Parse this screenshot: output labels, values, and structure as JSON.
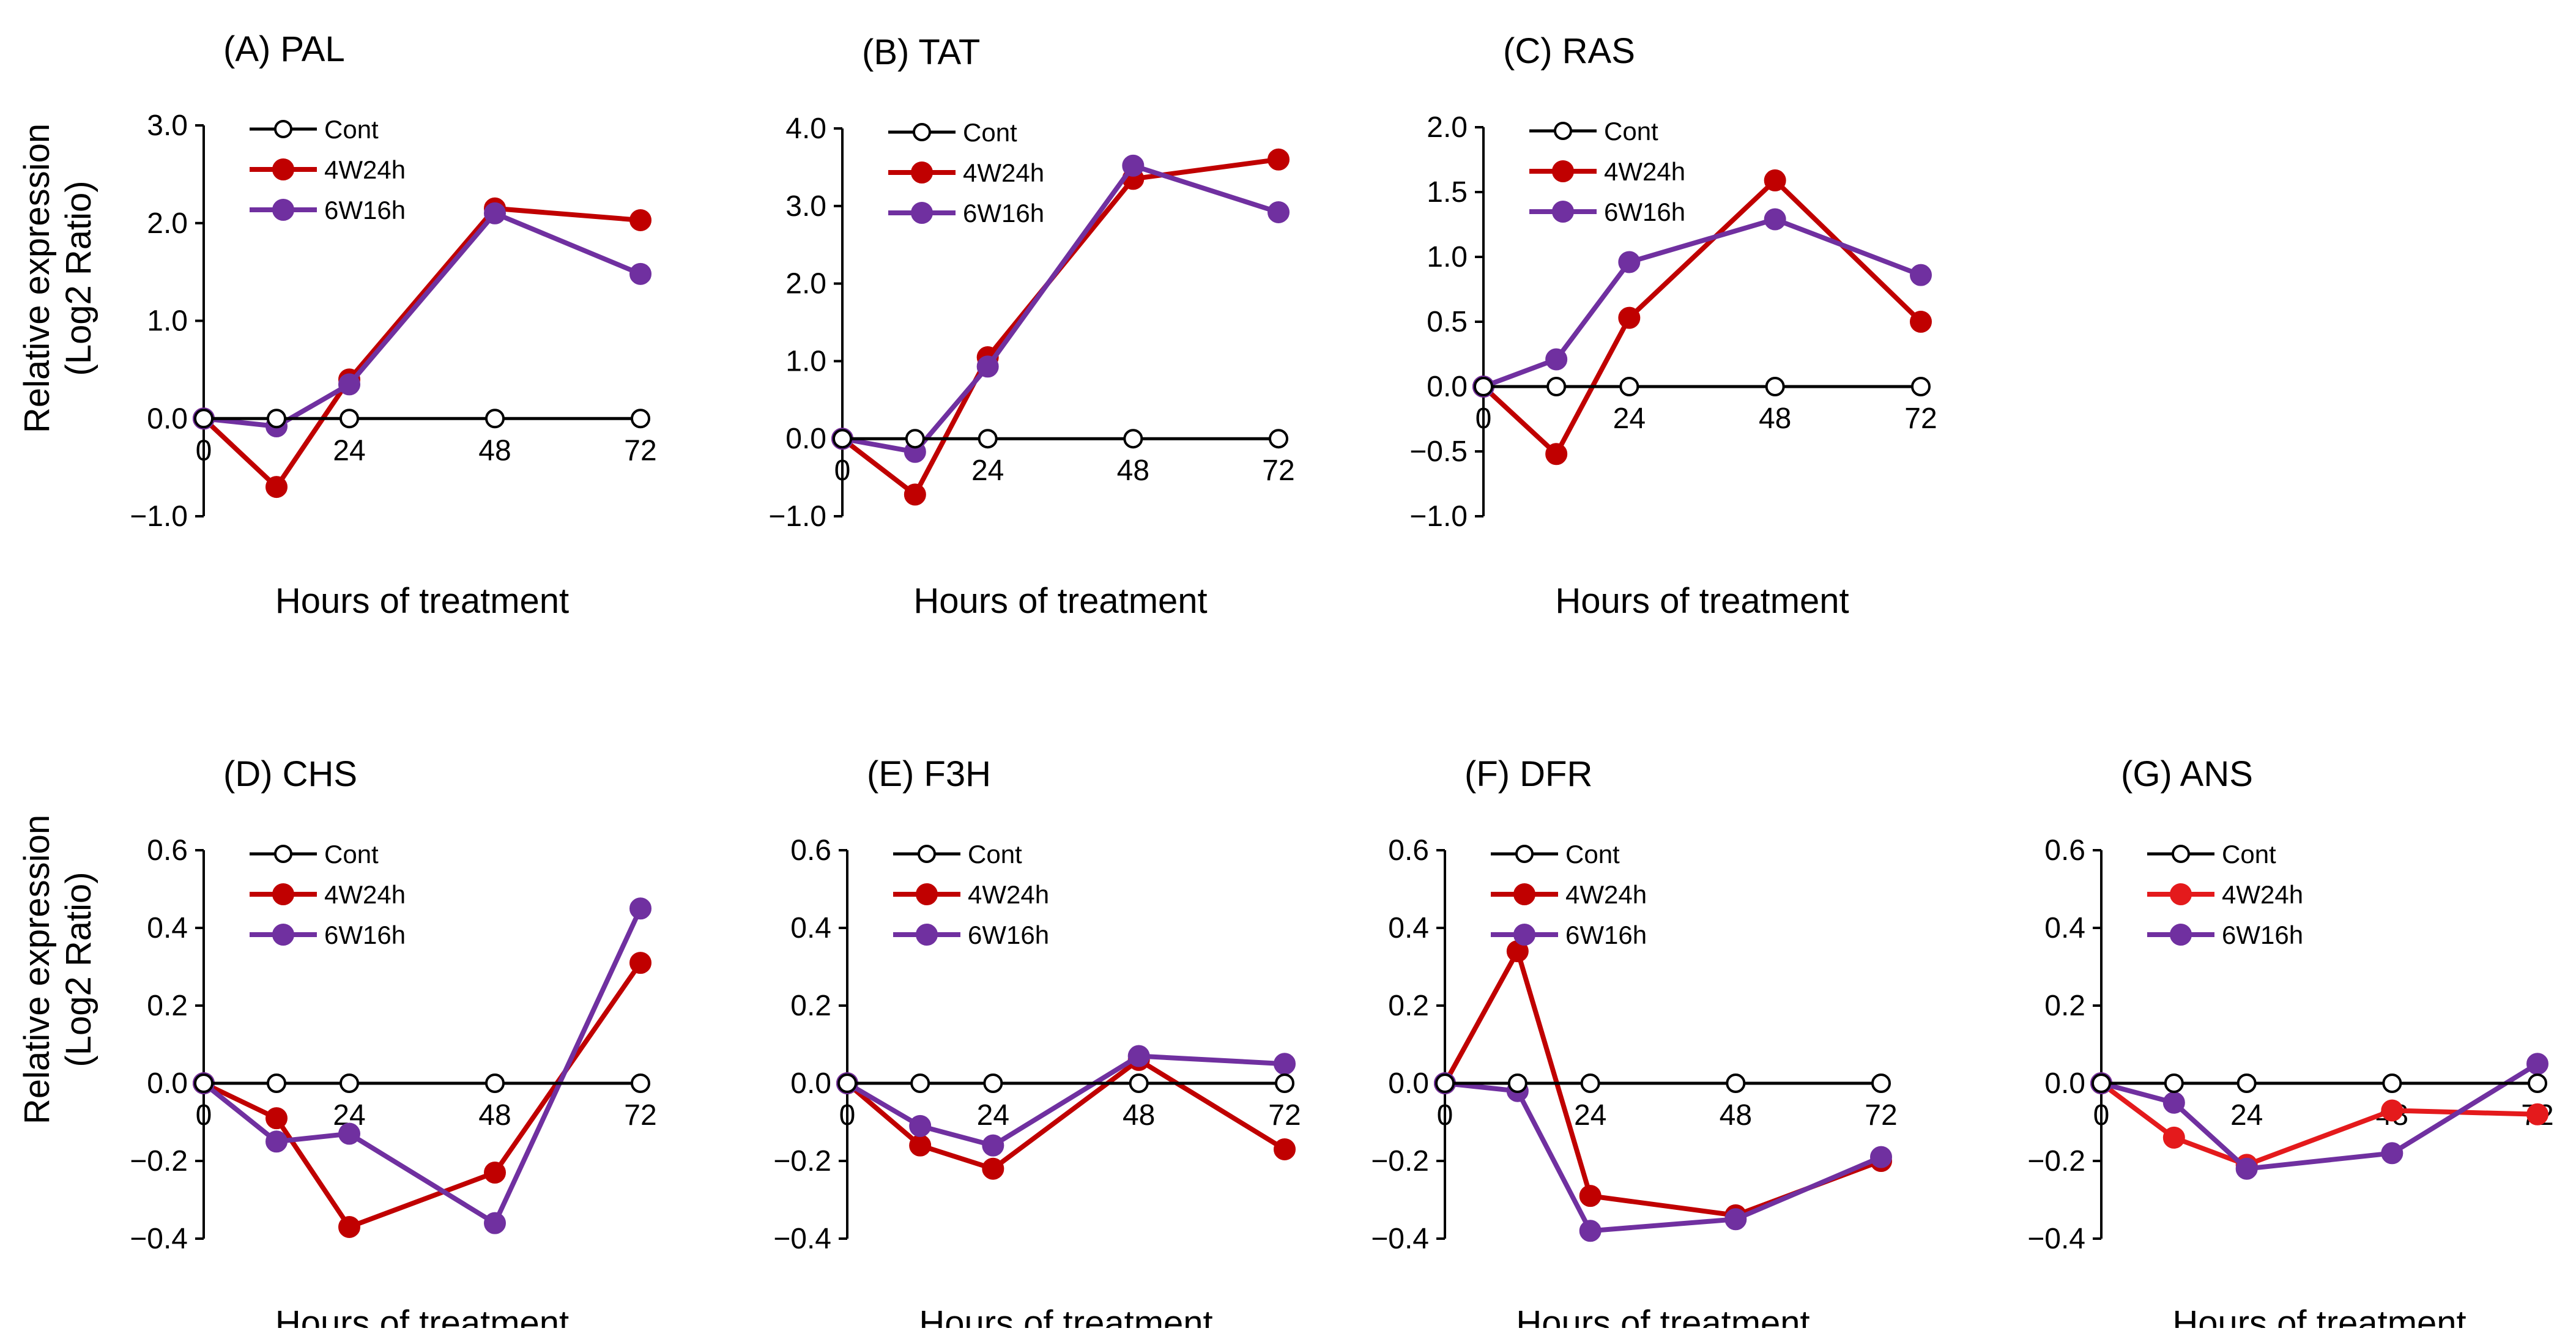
{
  "figure": {
    "ylabel_line1": "Relative expression",
    "ylabel_line2": "(Log2 Ratio)",
    "xlabel": "Hours of treatment"
  },
  "chart_data": [
    {
      "type": "line",
      "title": "(A) PAL",
      "xlabel": "Hours of treatment",
      "ylabel": "Relative expression (Log2 Ratio)",
      "x": [
        0,
        12,
        24,
        48,
        72
      ],
      "xticks": [
        "0",
        "24",
        "48",
        "72"
      ],
      "ylim": [
        -1.0,
        3.0
      ],
      "yticks": [
        "-1.0",
        "0.0",
        "1.0",
        "2.0",
        "3.0"
      ],
      "series": [
        {
          "name": "Cont",
          "color": "#000000",
          "marker": "open",
          "values": [
            0,
            0,
            0,
            0,
            0
          ]
        },
        {
          "name": "4W24h",
          "color": "#C00000",
          "marker": "filled",
          "values": [
            0,
            -0.7,
            0.4,
            2.15,
            2.03
          ]
        },
        {
          "name": "6W16h",
          "color": "#7030A0",
          "marker": "filled",
          "values": [
            0,
            -0.08,
            0.35,
            2.1,
            1.48
          ]
        }
      ]
    },
    {
      "type": "line",
      "title": "(B) TAT",
      "xlabel": "Hours of treatment",
      "ylabel": "Relative expression (Log2 Ratio)",
      "x": [
        0,
        12,
        24,
        48,
        72
      ],
      "xticks": [
        "0",
        "24",
        "48",
        "72"
      ],
      "ylim": [
        -1.0,
        4.0
      ],
      "yticks": [
        "-1.0",
        "0.0",
        "1.0",
        "2.0",
        "3.0",
        "4.0"
      ],
      "series": [
        {
          "name": "Cont",
          "color": "#000000",
          "marker": "open",
          "values": [
            0,
            0,
            0,
            0,
            0
          ]
        },
        {
          "name": "4W24h",
          "color": "#C00000",
          "marker": "filled",
          "values": [
            0,
            -0.72,
            1.05,
            3.35,
            3.6
          ]
        },
        {
          "name": "6W16h",
          "color": "#7030A0",
          "marker": "filled",
          "values": [
            0,
            -0.17,
            0.93,
            3.52,
            2.92
          ]
        }
      ]
    },
    {
      "type": "line",
      "title": "(C) RAS",
      "xlabel": "Hours of treatment",
      "ylabel": "Relative expression (Log2 Ratio)",
      "x": [
        0,
        12,
        24,
        48,
        72
      ],
      "xticks": [
        "0",
        "24",
        "48",
        "72"
      ],
      "ylim": [
        -1.0,
        2.0
      ],
      "yticks": [
        "-1.0",
        "-0.5",
        "0.0",
        "0.5",
        "1.0",
        "1.5",
        "2.0"
      ],
      "series": [
        {
          "name": "Cont",
          "color": "#000000",
          "marker": "open",
          "values": [
            0,
            0,
            0,
            0,
            0
          ]
        },
        {
          "name": "4W24h",
          "color": "#C00000",
          "marker": "filled",
          "values": [
            0,
            -0.52,
            0.53,
            1.59,
            0.5
          ]
        },
        {
          "name": "6W16h",
          "color": "#7030A0",
          "marker": "filled",
          "values": [
            0,
            0.21,
            0.96,
            1.29,
            0.86
          ]
        }
      ]
    },
    {
      "type": "line",
      "title": "(D) CHS",
      "xlabel": "Hours of treatment",
      "ylabel": "Relative expression (Log2 Ratio)",
      "x": [
        0,
        12,
        24,
        48,
        72
      ],
      "xticks": [
        "0",
        "24",
        "48",
        "72"
      ],
      "ylim": [
        -0.4,
        0.6
      ],
      "yticks": [
        "-0.4",
        "-0.2",
        "0.0",
        "0.2",
        "0.4",
        "0.6"
      ],
      "series": [
        {
          "name": "Cont",
          "color": "#000000",
          "marker": "open",
          "values": [
            0,
            0,
            0,
            0,
            0
          ]
        },
        {
          "name": "4W24h",
          "color": "#C00000",
          "marker": "filled",
          "values": [
            0,
            -0.09,
            -0.37,
            -0.23,
            0.31
          ]
        },
        {
          "name": "6W16h",
          "color": "#7030A0",
          "marker": "filled",
          "values": [
            0,
            -0.15,
            -0.13,
            -0.36,
            0.45
          ]
        }
      ]
    },
    {
      "type": "line",
      "title": "(E) F3H",
      "xlabel": "Hours of treatment",
      "ylabel": "Relative expression (Log2 Ratio)",
      "x": [
        0,
        12,
        24,
        48,
        72
      ],
      "xticks": [
        "0",
        "24",
        "48",
        "72"
      ],
      "ylim": [
        -0.4,
        0.6
      ],
      "yticks": [
        "-0.4",
        "-0.2",
        "0.0",
        "0.2",
        "0.4",
        "0.6"
      ],
      "series": [
        {
          "name": "Cont",
          "color": "#000000",
          "marker": "open",
          "values": [
            0,
            0,
            0,
            0,
            0
          ]
        },
        {
          "name": "4W24h",
          "color": "#C00000",
          "marker": "filled",
          "values": [
            0,
            -0.16,
            -0.22,
            0.06,
            -0.17
          ]
        },
        {
          "name": "6W16h",
          "color": "#7030A0",
          "marker": "filled",
          "values": [
            0,
            -0.11,
            -0.16,
            0.07,
            0.05
          ]
        }
      ]
    },
    {
      "type": "line",
      "title": "(F) DFR",
      "xlabel": "Hours of treatment",
      "ylabel": "Relative expression (Log2 Ratio)",
      "x": [
        0,
        12,
        24,
        48,
        72
      ],
      "xticks": [
        "0",
        "24",
        "48",
        "72"
      ],
      "ylim": [
        -0.4,
        0.6
      ],
      "yticks": [
        "-0.4",
        "-0.2",
        "0.0",
        "0.2",
        "0.4",
        "0.6"
      ],
      "series": [
        {
          "name": "Cont",
          "color": "#000000",
          "marker": "open",
          "values": [
            0,
            0,
            0,
            0,
            0
          ]
        },
        {
          "name": "4W24h",
          "color": "#C00000",
          "marker": "filled",
          "values": [
            0,
            0.34,
            -0.29,
            -0.34,
            -0.2
          ]
        },
        {
          "name": "6W16h",
          "color": "#7030A0",
          "marker": "filled",
          "values": [
            0,
            -0.02,
            -0.38,
            -0.35,
            -0.19
          ]
        }
      ]
    },
    {
      "type": "line",
      "title": "(G) ANS",
      "xlabel": "Hours of treatment",
      "ylabel": "Relative expression (Log2 Ratio)",
      "x": [
        0,
        12,
        24,
        48,
        72
      ],
      "xticks": [
        "0",
        "24",
        "48",
        "72"
      ],
      "ylim": [
        -0.4,
        0.6
      ],
      "yticks": [
        "-0.4",
        "-0.2",
        "0.0",
        "0.2",
        "0.4",
        "0.6"
      ],
      "series": [
        {
          "name": "Cont",
          "color": "#000000",
          "marker": "open",
          "values": [
            0,
            0,
            0,
            0,
            0
          ]
        },
        {
          "name": "4W24h",
          "color": "#E41A1C",
          "marker": "filled",
          "values": [
            0,
            -0.14,
            -0.21,
            -0.07,
            -0.08
          ]
        },
        {
          "name": "6W16h",
          "color": "#7030A0",
          "marker": "filled",
          "values": [
            0,
            -0.05,
            -0.22,
            -0.18,
            0.05
          ]
        }
      ]
    }
  ]
}
